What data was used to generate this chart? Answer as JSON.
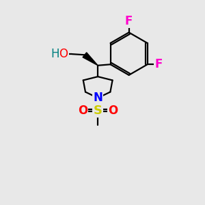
{
  "background_color": "#e8e8e8",
  "atom_colors": {
    "F": "#ff00cc",
    "O": "#ff0000",
    "H": "#008080",
    "N": "#0000ff",
    "S": "#cccc00",
    "C": "#000000"
  },
  "figsize": [
    3.0,
    3.0
  ],
  "dpi": 100
}
